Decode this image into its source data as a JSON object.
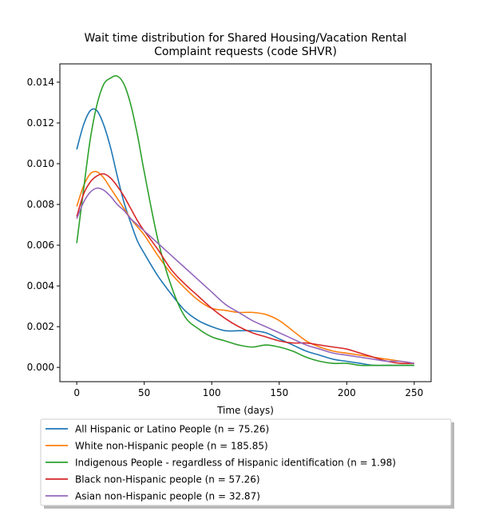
{
  "chart_data": {
    "type": "line",
    "title": "Wait time distribution  for Shared Housing/Vacation Rental\nComplaint  requests (code SHVR)",
    "xlabel": "Time (days)",
    "ylabel": "",
    "xlim": [
      -12.5,
      262.5
    ],
    "ylim": [
      -0.0007,
      0.0149
    ],
    "xticks": [
      0,
      50,
      100,
      150,
      200,
      250
    ],
    "yticks": [
      0.0,
      0.002,
      0.004,
      0.006,
      0.008,
      0.01,
      0.012,
      0.014
    ],
    "ytick_labels": [
      "0.000",
      "0.002",
      "0.004",
      "0.006",
      "0.008",
      "0.010",
      "0.012",
      "0.014"
    ],
    "grid": false,
    "legend_position": "below",
    "x": [
      0,
      5,
      10,
      15,
      20,
      25,
      30,
      35,
      40,
      45,
      50,
      60,
      70,
      80,
      90,
      100,
      110,
      120,
      130,
      140,
      150,
      160,
      170,
      180,
      190,
      200,
      210,
      220,
      230,
      240,
      250
    ],
    "series": [
      {
        "name": "All Hispanic or Latino People (n = 75.26)",
        "color": "#1f77b4",
        "values": [
          0.0107,
          0.0119,
          0.0126,
          0.0126,
          0.0119,
          0.0108,
          0.0094,
          0.0081,
          0.0071,
          0.0062,
          0.0056,
          0.0045,
          0.0036,
          0.0028,
          0.0023,
          0.002,
          0.0018,
          0.0018,
          0.0018,
          0.0017,
          0.0014,
          0.0011,
          0.0008,
          0.0006,
          0.0004,
          0.0003,
          0.0002,
          0.0001,
          0.0001,
          0.0001,
          0.0001
        ]
      },
      {
        "name": "White non-Hispanic people (n = 185.85)",
        "color": "#ff7f0e",
        "values": [
          0.0079,
          0.0089,
          0.0095,
          0.0096,
          0.0093,
          0.0088,
          0.0083,
          0.0078,
          0.0073,
          0.0069,
          0.0065,
          0.0055,
          0.0046,
          0.0039,
          0.0033,
          0.0029,
          0.0028,
          0.0027,
          0.0027,
          0.0026,
          0.0023,
          0.0018,
          0.0013,
          0.001,
          0.0008,
          0.0007,
          0.0006,
          0.0005,
          0.0004,
          0.0003,
          0.0002
        ]
      },
      {
        "name": "Indigenous People - regardless of Hispanic identification (n = 1.98)",
        "color": "#2ca02c",
        "values": [
          0.0061,
          0.0087,
          0.0112,
          0.0129,
          0.0139,
          0.0142,
          0.0143,
          0.0139,
          0.0129,
          0.0114,
          0.0096,
          0.0063,
          0.004,
          0.0025,
          0.0019,
          0.0015,
          0.0013,
          0.0011,
          0.001,
          0.0011,
          0.001,
          0.0008,
          0.0005,
          0.0003,
          0.0002,
          0.0002,
          0.0001,
          0.0001,
          0.0001,
          0.0001,
          0.0001
        ]
      },
      {
        "name": "Black non-Hispanic people (n = 57.26)",
        "color": "#d62728",
        "values": [
          0.0074,
          0.0085,
          0.0091,
          0.0094,
          0.0095,
          0.0093,
          0.0089,
          0.0084,
          0.0078,
          0.0072,
          0.0067,
          0.0058,
          0.0048,
          0.0041,
          0.0035,
          0.0029,
          0.0024,
          0.002,
          0.0017,
          0.0015,
          0.0013,
          0.0012,
          0.0012,
          0.0011,
          0.001,
          0.0009,
          0.0007,
          0.0005,
          0.0003,
          0.0002,
          0.0002
        ]
      },
      {
        "name": "Asian non-Hispanic people (n = 32.87)",
        "color": "#9467bd",
        "values": [
          0.0073,
          0.0081,
          0.0086,
          0.0088,
          0.0087,
          0.0084,
          0.008,
          0.0077,
          0.0073,
          0.007,
          0.0067,
          0.0061,
          0.0055,
          0.0049,
          0.0043,
          0.0037,
          0.0031,
          0.0027,
          0.0023,
          0.002,
          0.0017,
          0.0014,
          0.0011,
          0.0009,
          0.0007,
          0.0006,
          0.0005,
          0.0004,
          0.0003,
          0.0003,
          0.0002
        ]
      }
    ]
  }
}
